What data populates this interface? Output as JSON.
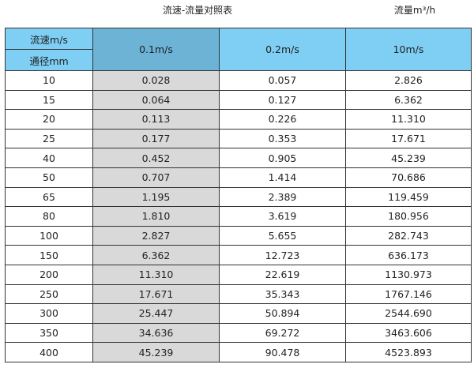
{
  "title": "流速-流量对照表",
  "unit_label": "流量m³/h",
  "header": {
    "velocity_label": "流速m/s",
    "diameter_label": "通径mm",
    "columns": [
      "0.1m/s",
      "0.2m/s",
      "10m/s"
    ]
  },
  "colors": {
    "header": "#7fcff5",
    "selected_header": "#6cb3d6",
    "selected_column": "#d9d9d9"
  },
  "rows": [
    [
      "10",
      "0.028",
      "0.057",
      "2.826"
    ],
    [
      "15",
      "0.064",
      "0.127",
      "6.362"
    ],
    [
      "20",
      "0.113",
      "0.226",
      "11.310"
    ],
    [
      "25",
      "0.177",
      "0.353",
      "17.671"
    ],
    [
      "40",
      "0.452",
      "0.905",
      "45.239"
    ],
    [
      "50",
      "0.707",
      "1.414",
      "70.686"
    ],
    [
      "65",
      "1.195",
      "2.389",
      "119.459"
    ],
    [
      "80",
      "1.810",
      "3.619",
      "180.956"
    ],
    [
      "100",
      "2.827",
      "5.655",
      "282.743"
    ],
    [
      "150",
      "6.362",
      "12.723",
      "636.173"
    ],
    [
      "200",
      "11.310",
      "22.619",
      "1130.973"
    ],
    [
      "250",
      "17.671",
      "35.343",
      "1767.146"
    ],
    [
      "300",
      "25.447",
      "50.894",
      "2544.690"
    ],
    [
      "350",
      "34.636",
      "69.272",
      "3463.606"
    ],
    [
      "400",
      "45.239",
      "90.478",
      "4523.893"
    ]
  ]
}
